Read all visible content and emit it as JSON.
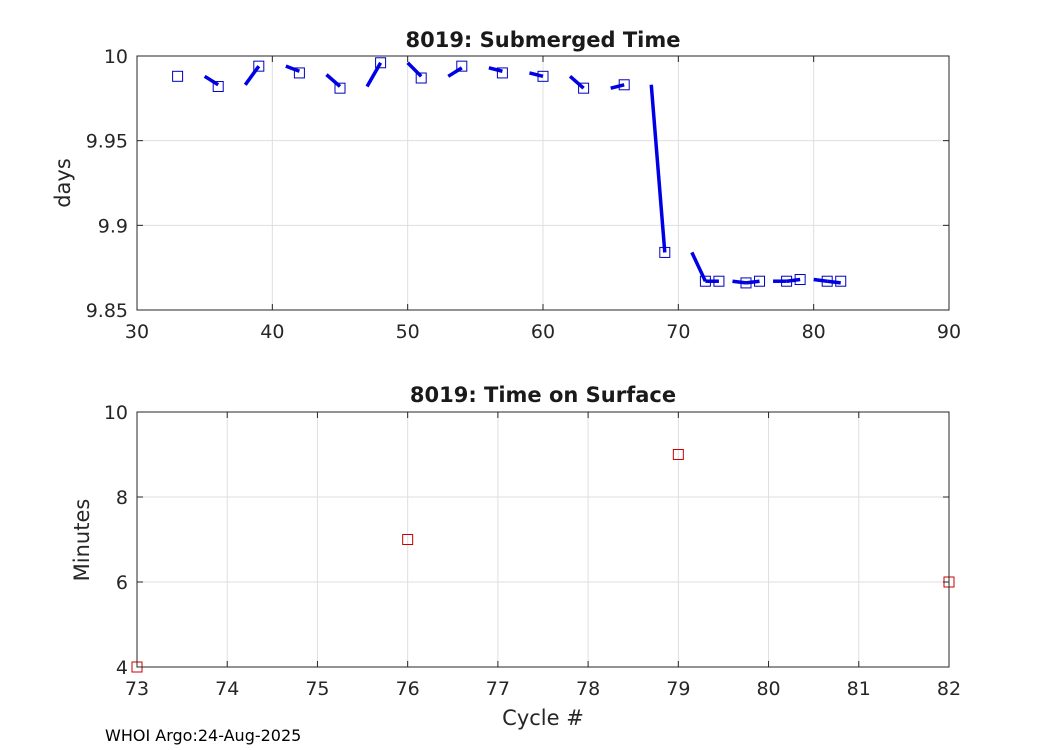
{
  "footer": "WHOI Argo:24-Aug-2025",
  "chart_data": [
    {
      "type": "scatter",
      "title": "8019: Submerged Time",
      "xlabel": "",
      "ylabel": "days",
      "xlim": [
        30,
        90
      ],
      "ylim": [
        9.85,
        10
      ],
      "xticks": [
        "30",
        "40",
        "50",
        "60",
        "70",
        "80",
        "90"
      ],
      "yticks": [
        "9.85",
        "9.9",
        "9.95",
        "10"
      ],
      "grid": true,
      "marker": "square",
      "marker_color": "#0000bf",
      "segment_color": "#0000e6",
      "x": [
        33,
        36,
        39,
        42,
        45,
        48,
        51,
        54,
        57,
        60,
        63,
        66,
        69,
        72,
        73,
        75,
        76,
        78,
        79,
        81,
        82
      ],
      "y": [
        9.988,
        9.982,
        9.994,
        9.99,
        9.981,
        9.996,
        9.987,
        9.994,
        9.99,
        9.988,
        9.981,
        9.983,
        9.884,
        9.867,
        9.867,
        9.866,
        9.867,
        9.867,
        9.868,
        9.867,
        9.867
      ],
      "segments": [
        {
          "x": [
            35,
            36
          ],
          "y": [
            9.988,
            9.983
          ]
        },
        {
          "x": [
            38,
            39
          ],
          "y": [
            9.983,
            9.994
          ]
        },
        {
          "x": [
            41,
            42
          ],
          "y": [
            9.994,
            9.991
          ]
        },
        {
          "x": [
            44,
            45
          ],
          "y": [
            9.989,
            9.982
          ]
        },
        {
          "x": [
            47,
            48
          ],
          "y": [
            9.982,
            9.996
          ]
        },
        {
          "x": [
            50,
            51
          ],
          "y": [
            9.996,
            9.988
          ]
        },
        {
          "x": [
            53,
            54
          ],
          "y": [
            9.988,
            9.993
          ]
        },
        {
          "x": [
            56,
            57
          ],
          "y": [
            9.993,
            9.991
          ]
        },
        {
          "x": [
            59,
            60
          ],
          "y": [
            9.99,
            9.988
          ]
        },
        {
          "x": [
            62,
            63
          ],
          "y": [
            9.988,
            9.981
          ]
        },
        {
          "x": [
            65,
            66
          ],
          "y": [
            9.981,
            9.983
          ]
        },
        {
          "x": [
            68,
            69
          ],
          "y": [
            9.983,
            9.884
          ]
        },
        {
          "x": [
            71,
            72
          ],
          "y": [
            9.884,
            9.867
          ]
        },
        {
          "x": [
            72,
            73
          ],
          "y": [
            9.867,
            9.867
          ]
        },
        {
          "x": [
            74,
            75
          ],
          "y": [
            9.867,
            9.866
          ]
        },
        {
          "x": [
            75,
            76
          ],
          "y": [
            9.866,
            9.867
          ]
        },
        {
          "x": [
            77,
            78
          ],
          "y": [
            9.867,
            9.867
          ]
        },
        {
          "x": [
            78,
            79
          ],
          "y": [
            9.867,
            9.868
          ]
        },
        {
          "x": [
            80,
            81
          ],
          "y": [
            9.868,
            9.867
          ]
        },
        {
          "x": [
            81,
            82
          ],
          "y": [
            9.867,
            9.866
          ]
        }
      ]
    },
    {
      "type": "scatter",
      "title": "8019: Time on Surface",
      "xlabel": "Cycle #",
      "ylabel": "Minutes",
      "xlim": [
        73,
        82
      ],
      "ylim": [
        4,
        10
      ],
      "xticks": [
        "73",
        "74",
        "75",
        "76",
        "77",
        "78",
        "79",
        "80",
        "81",
        "82"
      ],
      "yticks": [
        "4",
        "6",
        "8",
        "10"
      ],
      "grid": true,
      "marker": "square",
      "marker_color": "#cc0000",
      "x": [
        73,
        76,
        79,
        82
      ],
      "y": [
        4,
        7,
        9,
        6
      ]
    }
  ]
}
